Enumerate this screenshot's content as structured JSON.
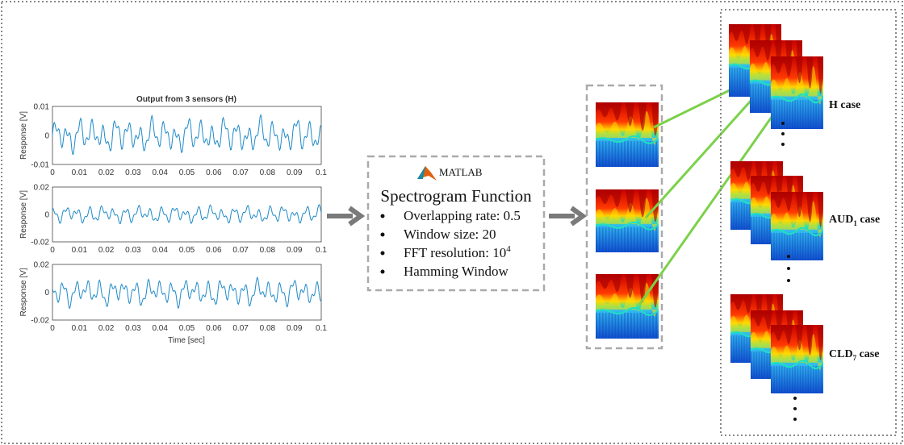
{
  "plots": {
    "title": "Output from 3 sensors (H)",
    "x_label": "Time [sec]",
    "panels": [
      {
        "y_label": "Response [V]",
        "y_ticks": [
          "0.01",
          "0",
          "-0.01"
        ],
        "x_ticks": [
          "0",
          "0.01",
          "0.02",
          "0.03",
          "0.04",
          "0.05",
          "0.06",
          "0.07",
          "0.08",
          "0.09",
          "0.1"
        ]
      },
      {
        "y_label": "Response [V]",
        "y_ticks": [
          "0.02",
          "0",
          "-0.02"
        ],
        "x_ticks": [
          "0",
          "0.01",
          "0.02",
          "0.03",
          "0.04",
          "0.05",
          "0.06",
          "0.07",
          "0.08",
          "0.09",
          "0.1"
        ]
      },
      {
        "y_label": "Response [V]",
        "y_ticks": [
          "0.02",
          "0",
          "-0.02"
        ],
        "x_ticks": [
          "0",
          "0.01",
          "0.02",
          "0.03",
          "0.04",
          "0.05",
          "0.06",
          "0.07",
          "0.08",
          "0.09",
          "0.1"
        ]
      }
    ]
  },
  "function_box": {
    "logo": "MATLAB",
    "title": "Spectrogram Function",
    "bullets": [
      {
        "text": "Overlapping rate: 0.5"
      },
      {
        "text": "Window size: 20"
      },
      {
        "text": "FFT resolution: 10",
        "sup": "4"
      },
      {
        "text": "Hamming Window"
      }
    ]
  },
  "cases": [
    {
      "base": "H",
      "suffix": " case"
    },
    {
      "base": "AUD",
      "sub": "1",
      "suffix": " case"
    },
    {
      "base": "CLD",
      "sub": "7",
      "suffix": " case"
    }
  ]
}
